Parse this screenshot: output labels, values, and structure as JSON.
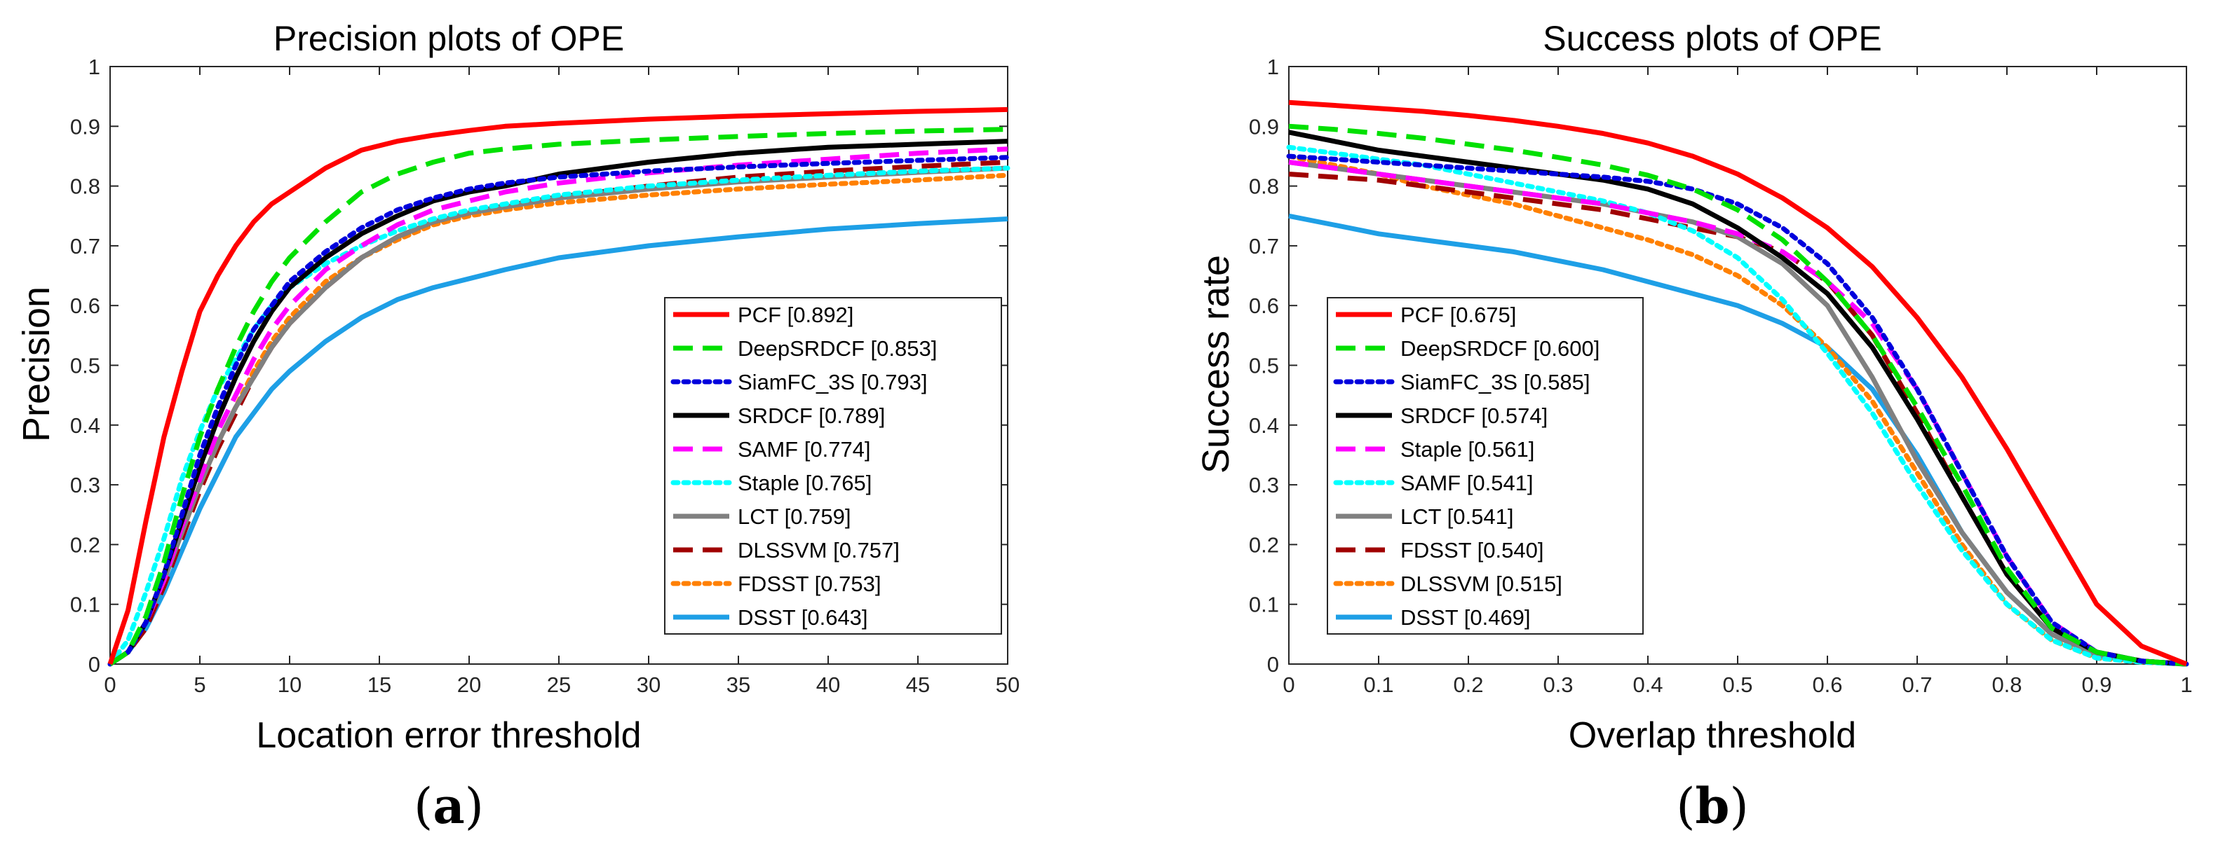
{
  "chart_data": [
    {
      "type": "line",
      "panel_label": "(a)",
      "title": "Precision plots of OPE",
      "xlabel": "Location error threshold",
      "ylabel": "Precision",
      "xlim": [
        0,
        50
      ],
      "ylim": [
        0,
        1
      ],
      "xticks": [
        "0",
        "5",
        "10",
        "15",
        "20",
        "25",
        "30",
        "35",
        "40",
        "45",
        "50"
      ],
      "yticks": [
        "0",
        "0.1",
        "0.2",
        "0.3",
        "0.4",
        "0.5",
        "0.6",
        "0.7",
        "0.8",
        "0.9",
        "1"
      ],
      "x": [
        0,
        1,
        2,
        3,
        4,
        5,
        6,
        7,
        8,
        9,
        10,
        12,
        14,
        16,
        18,
        20,
        22,
        25,
        30,
        35,
        40,
        45,
        50
      ],
      "legend_position": "right",
      "series": [
        {
          "name": "PCF",
          "score": "[0.892]",
          "color": "#ff0000",
          "style": "solid",
          "values": [
            0.0,
            0.09,
            0.24,
            0.38,
            0.49,
            0.59,
            0.65,
            0.7,
            0.74,
            0.77,
            0.79,
            0.83,
            0.86,
            0.875,
            0.885,
            0.893,
            0.9,
            0.905,
            0.912,
            0.917,
            0.921,
            0.925,
            0.928
          ]
        },
        {
          "name": "DeepSRDCF",
          "score": "[0.853]",
          "color": "#00e000",
          "style": "dashed",
          "values": [
            0.0,
            0.02,
            0.08,
            0.17,
            0.28,
            0.38,
            0.46,
            0.53,
            0.59,
            0.64,
            0.68,
            0.74,
            0.79,
            0.82,
            0.84,
            0.855,
            0.862,
            0.87,
            0.877,
            0.883,
            0.888,
            0.892,
            0.895
          ]
        },
        {
          "name": "SiamFC_3S",
          "score": "[0.793]",
          "color": "#0000dd",
          "style": "dotted",
          "values": [
            0.0,
            0.02,
            0.07,
            0.15,
            0.25,
            0.35,
            0.43,
            0.5,
            0.56,
            0.6,
            0.64,
            0.69,
            0.73,
            0.76,
            0.78,
            0.795,
            0.805,
            0.815,
            0.825,
            0.832,
            0.838,
            0.843,
            0.848
          ]
        },
        {
          "name": "SRDCF",
          "score": "[0.789]",
          "color": "#000000",
          "style": "solid",
          "values": [
            0.0,
            0.02,
            0.07,
            0.15,
            0.24,
            0.33,
            0.41,
            0.48,
            0.54,
            0.59,
            0.63,
            0.68,
            0.72,
            0.75,
            0.775,
            0.79,
            0.8,
            0.82,
            0.84,
            0.855,
            0.865,
            0.87,
            0.875
          ]
        },
        {
          "name": "SAMF",
          "score": "[0.774]",
          "color": "#ff00ff",
          "style": "dashed",
          "values": [
            0.0,
            0.02,
            0.07,
            0.14,
            0.23,
            0.31,
            0.39,
            0.45,
            0.51,
            0.56,
            0.6,
            0.66,
            0.7,
            0.735,
            0.76,
            0.775,
            0.79,
            0.805,
            0.822,
            0.835,
            0.845,
            0.855,
            0.862
          ]
        },
        {
          "name": "Staple",
          "score": "[0.765]",
          "color": "#00ffff",
          "style": "dotted",
          "values": [
            0.0,
            0.04,
            0.12,
            0.21,
            0.31,
            0.39,
            0.46,
            0.51,
            0.56,
            0.6,
            0.63,
            0.67,
            0.7,
            0.725,
            0.745,
            0.76,
            0.77,
            0.785,
            0.8,
            0.81,
            0.818,
            0.825,
            0.83
          ]
        },
        {
          "name": "LCT",
          "score": "[0.759]",
          "color": "#808080",
          "style": "solid",
          "values": [
            0.0,
            0.02,
            0.07,
            0.14,
            0.22,
            0.3,
            0.37,
            0.43,
            0.48,
            0.53,
            0.57,
            0.63,
            0.68,
            0.715,
            0.74,
            0.755,
            0.765,
            0.78,
            0.795,
            0.807,
            0.815,
            0.823,
            0.83
          ]
        },
        {
          "name": "DLSSVM",
          "score": "[0.757]",
          "color": "#a00000",
          "style": "dashed",
          "values": [
            0.0,
            0.02,
            0.06,
            0.13,
            0.21,
            0.29,
            0.36,
            0.42,
            0.48,
            0.53,
            0.57,
            0.63,
            0.68,
            0.715,
            0.74,
            0.755,
            0.767,
            0.782,
            0.8,
            0.815,
            0.825,
            0.833,
            0.84
          ]
        },
        {
          "name": "FDSST",
          "score": "[0.753]",
          "color": "#ff8000",
          "style": "dotted",
          "values": [
            0.0,
            0.02,
            0.07,
            0.14,
            0.22,
            0.3,
            0.37,
            0.43,
            0.49,
            0.54,
            0.58,
            0.64,
            0.68,
            0.71,
            0.735,
            0.75,
            0.76,
            0.772,
            0.785,
            0.795,
            0.803,
            0.81,
            0.818
          ]
        },
        {
          "name": "DSST",
          "score": "[0.643]",
          "color": "#1e9fe6",
          "style": "solid",
          "values": [
            0.0,
            0.02,
            0.06,
            0.12,
            0.19,
            0.26,
            0.32,
            0.38,
            0.42,
            0.46,
            0.49,
            0.54,
            0.58,
            0.61,
            0.63,
            0.645,
            0.66,
            0.68,
            0.7,
            0.715,
            0.728,
            0.737,
            0.745
          ]
        }
      ]
    },
    {
      "type": "line",
      "panel_label": "(b)",
      "title": "Success plots of OPE",
      "xlabel": "Overlap threshold",
      "ylabel": "Success rate",
      "xlim": [
        0,
        1
      ],
      "ylim": [
        0,
        1
      ],
      "xticks": [
        "0",
        "0.1",
        "0.2",
        "0.3",
        "0.4",
        "0.5",
        "0.6",
        "0.7",
        "0.8",
        "0.9",
        "1"
      ],
      "yticks": [
        "0",
        "0.1",
        "0.2",
        "0.3",
        "0.4",
        "0.5",
        "0.6",
        "0.7",
        "0.8",
        "0.9",
        "1"
      ],
      "x": [
        0,
        0.05,
        0.1,
        0.15,
        0.2,
        0.25,
        0.3,
        0.35,
        0.4,
        0.45,
        0.5,
        0.55,
        0.6,
        0.65,
        0.7,
        0.75,
        0.8,
        0.85,
        0.9,
        0.95,
        1.0
      ],
      "legend_position": "left",
      "series": [
        {
          "name": "PCF",
          "score": "[0.675]",
          "color": "#ff0000",
          "style": "solid",
          "values": [
            0.94,
            0.935,
            0.93,
            0.925,
            0.918,
            0.91,
            0.9,
            0.888,
            0.872,
            0.85,
            0.82,
            0.78,
            0.73,
            0.665,
            0.58,
            0.48,
            0.36,
            0.23,
            0.1,
            0.03,
            0.0
          ]
        },
        {
          "name": "DeepSRDCF",
          "score": "[0.600]",
          "color": "#00e000",
          "style": "dashed",
          "values": [
            0.9,
            0.895,
            0.888,
            0.88,
            0.87,
            0.86,
            0.848,
            0.835,
            0.818,
            0.795,
            0.76,
            0.71,
            0.64,
            0.55,
            0.43,
            0.3,
            0.16,
            0.06,
            0.02,
            0.005,
            0.0
          ]
        },
        {
          "name": "SiamFC_3S",
          "score": "[0.585]",
          "color": "#0000dd",
          "style": "dotted",
          "values": [
            0.85,
            0.845,
            0.84,
            0.835,
            0.83,
            0.825,
            0.82,
            0.815,
            0.808,
            0.795,
            0.77,
            0.73,
            0.67,
            0.58,
            0.46,
            0.32,
            0.18,
            0.07,
            0.02,
            0.005,
            0.0
          ]
        },
        {
          "name": "SRDCF",
          "score": "[0.574]",
          "color": "#000000",
          "style": "solid",
          "values": [
            0.89,
            0.875,
            0.86,
            0.85,
            0.84,
            0.83,
            0.82,
            0.81,
            0.795,
            0.77,
            0.73,
            0.68,
            0.62,
            0.53,
            0.41,
            0.28,
            0.15,
            0.06,
            0.02,
            0.005,
            0.0
          ]
        },
        {
          "name": "Staple",
          "score": "[0.561]",
          "color": "#ff00ff",
          "style": "dashed",
          "values": [
            0.84,
            0.83,
            0.82,
            0.81,
            0.8,
            0.79,
            0.78,
            0.77,
            0.755,
            0.74,
            0.72,
            0.69,
            0.64,
            0.57,
            0.46,
            0.32,
            0.18,
            0.07,
            0.02,
            0.005,
            0.0
          ]
        },
        {
          "name": "SAMF",
          "score": "[0.541]",
          "color": "#00ffff",
          "style": "dotted",
          "values": [
            0.865,
            0.855,
            0.845,
            0.835,
            0.82,
            0.805,
            0.79,
            0.775,
            0.755,
            0.725,
            0.68,
            0.61,
            0.52,
            0.42,
            0.3,
            0.19,
            0.1,
            0.04,
            0.01,
            0.003,
            0.0
          ]
        },
        {
          "name": "LCT",
          "score": "[0.541]",
          "color": "#808080",
          "style": "solid",
          "values": [
            0.84,
            0.83,
            0.82,
            0.81,
            0.8,
            0.79,
            0.78,
            0.77,
            0.755,
            0.74,
            0.715,
            0.67,
            0.6,
            0.48,
            0.34,
            0.22,
            0.12,
            0.05,
            0.015,
            0.004,
            0.0
          ]
        },
        {
          "name": "FDSST",
          "score": "[0.540]",
          "color": "#a00000",
          "style": "dashed",
          "values": [
            0.82,
            0.815,
            0.81,
            0.8,
            0.79,
            0.78,
            0.77,
            0.76,
            0.745,
            0.73,
            0.715,
            0.69,
            0.64,
            0.55,
            0.42,
            0.28,
            0.15,
            0.06,
            0.02,
            0.005,
            0.0
          ]
        },
        {
          "name": "DLSSVM",
          "score": "[0.515]",
          "color": "#ff8000",
          "style": "dotted",
          "values": [
            0.85,
            0.835,
            0.82,
            0.8,
            0.785,
            0.77,
            0.75,
            0.73,
            0.71,
            0.685,
            0.65,
            0.6,
            0.53,
            0.44,
            0.32,
            0.2,
            0.1,
            0.04,
            0.01,
            0.003,
            0.0
          ]
        },
        {
          "name": "DSST",
          "score": "[0.469]",
          "color": "#1e9fe6",
          "style": "solid",
          "values": [
            0.75,
            0.735,
            0.72,
            0.71,
            0.7,
            0.69,
            0.675,
            0.66,
            0.64,
            0.62,
            0.6,
            0.57,
            0.53,
            0.46,
            0.35,
            0.22,
            0.12,
            0.05,
            0.015,
            0.004,
            0.0
          ]
        }
      ]
    }
  ]
}
